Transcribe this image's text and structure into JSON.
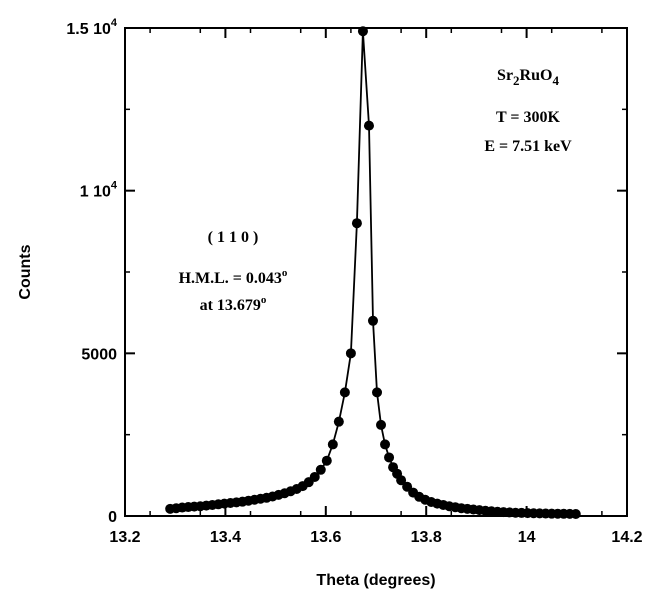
{
  "chart_data": {
    "type": "scatter",
    "title": "",
    "xlabel": "Theta (degrees)",
    "ylabel": "Counts",
    "xlim": [
      13.2,
      14.2
    ],
    "ylim": [
      0,
      15000
    ],
    "grid": false,
    "x_ticks": [
      {
        "value": 13.2,
        "label": "13.2"
      },
      {
        "value": 13.4,
        "label": "13.4"
      },
      {
        "value": 13.6,
        "label": "13.6"
      },
      {
        "value": 13.8,
        "label": "13.8"
      },
      {
        "value": 14.0,
        "label": "14"
      },
      {
        "value": 14.2,
        "label": "14.2"
      }
    ],
    "y_ticks": [
      {
        "value": 0,
        "label": "0"
      },
      {
        "value": 5000,
        "label": "5000"
      },
      {
        "value": 10000,
        "label": "1 10",
        "sup": "4"
      },
      {
        "value": 15000,
        "label": "1.5 10",
        "sup": "4"
      }
    ],
    "annotations": {
      "sample": {
        "main": "Sr",
        "sub1": "2",
        "mid": "RuO",
        "sub2": "4"
      },
      "temperature": "T = 300K",
      "energy": "E = 7.51 keV",
      "reflection": "( 1 1 0 )",
      "hml": {
        "text": "H.M.L. = 0.043",
        "sup": "o"
      },
      "peak_pos": {
        "text": "at 13.679",
        "sup": "o"
      }
    },
    "series": [
      {
        "x": [
          13.29,
          13.302,
          13.314,
          13.326,
          13.338,
          13.35,
          13.362,
          13.374,
          13.386,
          13.398,
          13.41,
          13.422,
          13.434,
          13.446,
          13.458,
          13.47,
          13.482,
          13.494,
          13.506,
          13.518,
          13.53,
          13.542,
          13.554,
          13.566,
          13.578,
          13.59,
          13.602,
          13.614,
          13.626,
          13.638,
          13.65,
          13.662,
          13.674,
          13.686,
          13.694,
          13.702,
          13.71,
          13.718,
          13.726,
          13.734,
          13.742,
          13.75,
          13.762,
          13.774,
          13.786,
          13.798,
          13.81,
          13.822,
          13.834,
          13.846,
          13.858,
          13.87,
          13.882,
          13.894,
          13.906,
          13.918,
          13.93,
          13.942,
          13.954,
          13.966,
          13.978,
          13.99,
          14.002,
          14.014,
          14.026,
          14.038,
          14.05,
          14.062,
          14.074,
          14.086,
          14.098
        ],
        "y": [
          220,
          240,
          260,
          275,
          290,
          300,
          320,
          340,
          360,
          380,
          400,
          420,
          440,
          470,
          500,
          530,
          560,
          600,
          650,
          700,
          760,
          830,
          920,
          1040,
          1200,
          1420,
          1700,
          2200,
          2900,
          3800,
          5000,
          9000,
          14900,
          12000,
          6000,
          3800,
          2800,
          2200,
          1800,
          1500,
          1300,
          1100,
          900,
          720,
          590,
          500,
          430,
          380,
          340,
          300,
          270,
          240,
          220,
          200,
          180,
          160,
          145,
          130,
          120,
          110,
          100,
          95,
          90,
          85,
          80,
          75,
          72,
          70,
          68,
          65,
          62
        ]
      }
    ]
  }
}
